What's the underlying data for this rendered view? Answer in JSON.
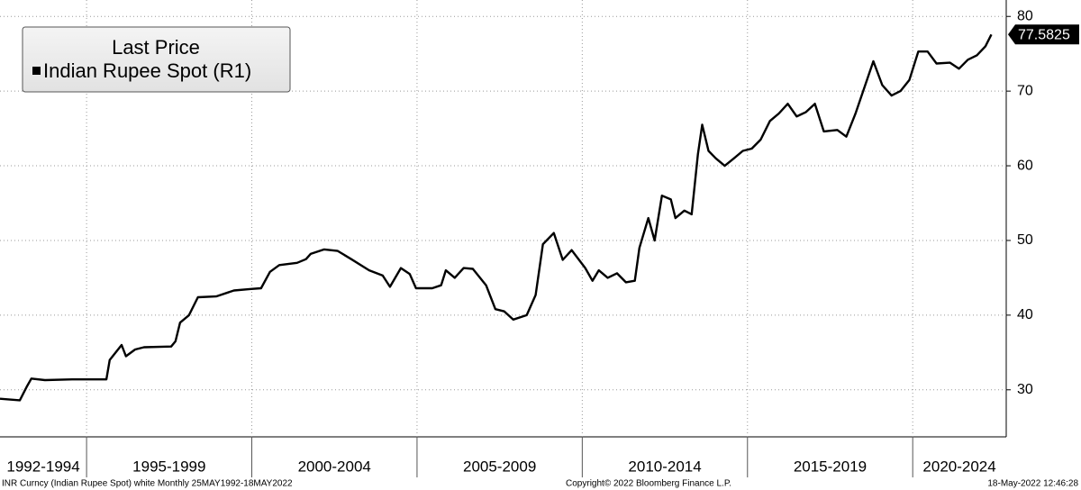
{
  "chart_data": {
    "type": "line",
    "legend_title": "Last Price",
    "series": [
      {
        "name": "Indian Rupee Spot  (R1)",
        "color": "#000000",
        "values": [
          28.8,
          28.6,
          30.5,
          31.5,
          31.3,
          31.4,
          31.4,
          34,
          36,
          34.5,
          35.4,
          35.7,
          35.8,
          36.5,
          39,
          40,
          42.4,
          42.5,
          43.3,
          43.5,
          43.6,
          45.8,
          46.7,
          47,
          47.5,
          48.2,
          48.8,
          48.6,
          47.5,
          46,
          45.3,
          43.8,
          46.3,
          45.5,
          43.6,
          43.6,
          44,
          46,
          45,
          46.3,
          46.2,
          44,
          40.8,
          40.5,
          39.4,
          40,
          42.7,
          49.5,
          51,
          47.4,
          48.7,
          46.3,
          44.6,
          46,
          45,
          45.6,
          44.4,
          44.6,
          49,
          53,
          50,
          56,
          55.5,
          53,
          54,
          53.5,
          61.5,
          65.5,
          62,
          61,
          60,
          61,
          62,
          62.3,
          63.5,
          66,
          67,
          68.3,
          66.6,
          67.2,
          68.3,
          64.6,
          64.8,
          63.9,
          67,
          70.5,
          74,
          70.8,
          69.4,
          70,
          71.5,
          75.3,
          75.3,
          73.7,
          73.8,
          73,
          74.2,
          74.8,
          76,
          77.5825
        ]
      }
    ],
    "x": [
      1992.38,
      1992.98,
      1993.2,
      1993.33,
      1993.74,
      1994.56,
      1995.6,
      1995.7,
      1996.06,
      1996.19,
      1996.47,
      1996.74,
      1997.56,
      1997.69,
      1997.83,
      1998.1,
      1998.37,
      1998.92,
      1999.46,
      1999.98,
      2000.28,
      2000.55,
      2000.83,
      2001.37,
      2001.64,
      2001.78,
      2002.19,
      2002.6,
      2003.01,
      2003.55,
      2003.96,
      2004.18,
      2004.51,
      2004.78,
      2004.97,
      2005.46,
      2005.73,
      2005.87,
      2006.14,
      2006.41,
      2006.69,
      2007.09,
      2007.37,
      2007.64,
      2007.91,
      2008.32,
      2008.59,
      2008.81,
      2009.14,
      2009.41,
      2009.68,
      2010.09,
      2010.31,
      2010.5,
      2010.77,
      2011.05,
      2011.32,
      2011.59,
      2011.73,
      2012.0,
      2012.19,
      2012.41,
      2012.68,
      2012.82,
      2013.09,
      2013.31,
      2013.5,
      2013.63,
      2013.82,
      2014.04,
      2014.31,
      2014.59,
      2014.86,
      2015.13,
      2015.4,
      2015.68,
      2015.95,
      2016.22,
      2016.49,
      2016.77,
      2017.04,
      2017.31,
      2017.72,
      2017.99,
      2018.27,
      2018.54,
      2018.81,
      2019.08,
      2019.36,
      2019.63,
      2019.9,
      2020.17,
      2020.45,
      2020.72,
      2021.13,
      2021.4,
      2021.67,
      2021.94,
      2022.2,
      2022.38
    ],
    "xlim": [
      1992.38,
      2022.83
    ],
    "xticks": [
      1995,
      2000,
      2005,
      2010,
      2015,
      2020
    ],
    "x_period_labels": [
      "1992-1994",
      "1995-1999",
      "2000-2004",
      "2005-2009",
      "2010-2014",
      "2015-2019",
      "2020-2024"
    ],
    "ylim": [
      23.7,
      82.2
    ],
    "yticks": [
      30,
      40,
      50,
      60,
      70,
      80
    ],
    "grid": true
  },
  "footer": {
    "left": "INR Curncy (Indian Rupee Spot) white  Monthly 25MAY1992-18MAY2022",
    "center": "Copyright© 2022 Bloomberg Finance L.P.",
    "right": "18-May-2022 12:46:28"
  }
}
